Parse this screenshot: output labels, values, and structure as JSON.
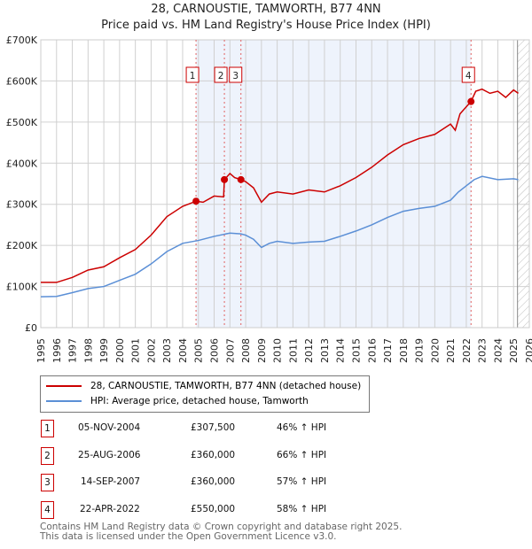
{
  "title": "28, CARNOUSTIE, TAMWORTH, B77 4NN",
  "subtitle": "Price paid vs. HM Land Registry's House Price Index (HPI)",
  "chart_data": {
    "type": "line",
    "xlim": [
      1995,
      2026
    ],
    "ylim": [
      0,
      700000
    ],
    "yticks": [
      0,
      100000,
      200000,
      300000,
      400000,
      500000,
      600000,
      700000
    ],
    "ytick_labels": [
      "£0",
      "£100K",
      "£200K",
      "£300K",
      "£400K",
      "£500K",
      "£600K",
      "£700K"
    ],
    "xticks": [
      "1995",
      "1996",
      "1997",
      "1998",
      "1999",
      "2000",
      "2001",
      "2002",
      "2003",
      "2004",
      "2005",
      "2006",
      "2007",
      "2008",
      "2009",
      "2010",
      "2011",
      "2012",
      "2013",
      "2014",
      "2015",
      "2016",
      "2017",
      "2018",
      "2019",
      "2020",
      "2021",
      "2022",
      "2023",
      "2024",
      "2025",
      "2026"
    ],
    "colors": {
      "property": "#cc0000",
      "hpi": "#5b8fd6",
      "shade": "#eef3fc"
    },
    "series": [
      {
        "name": "28, CARNOUSTIE, TAMWORTH, B77 4NN (detached house)",
        "x": [
          1995,
          1996,
          1997,
          1998,
          1999,
          2000,
          2001,
          2002,
          2003,
          2004,
          2004.85,
          2005.3,
          2006,
          2006.6,
          2006.65,
          2007,
          2007.3,
          2007.7,
          2008,
          2008.5,
          2009,
          2009.5,
          2010,
          2011,
          2012,
          2013,
          2014,
          2015,
          2016,
          2017,
          2018,
          2019,
          2020,
          2021,
          2021.3,
          2021.6,
          2022.3,
          2022.6,
          2023,
          2023.5,
          2024,
          2024.5,
          2025,
          2025.3
        ],
        "y": [
          110000,
          110000,
          122000,
          140000,
          148000,
          170000,
          190000,
          225000,
          270000,
          295000,
          307500,
          305000,
          320000,
          318000,
          360000,
          375000,
          365000,
          360000,
          355000,
          340000,
          305000,
          325000,
          330000,
          325000,
          335000,
          330000,
          345000,
          365000,
          390000,
          420000,
          445000,
          460000,
          470000,
          495000,
          480000,
          520000,
          550000,
          575000,
          580000,
          570000,
          575000,
          560000,
          578000,
          570000
        ]
      },
      {
        "name": "HPI: Average price, detached house, Tamworth",
        "x": [
          1995,
          1996,
          1997,
          1998,
          1999,
          2000,
          2001,
          2002,
          2003,
          2004,
          2005,
          2006,
          2007,
          2007.7,
          2008,
          2008.5,
          2009,
          2009.5,
          2010,
          2011,
          2012,
          2013,
          2014,
          2015,
          2016,
          2017,
          2018,
          2019,
          2020,
          2021,
          2021.5,
          2022,
          2022.5,
          2023,
          2024,
          2025,
          2025.3
        ],
        "y": [
          75000,
          76000,
          85000,
          95000,
          100000,
          115000,
          130000,
          155000,
          185000,
          205000,
          212000,
          222000,
          230000,
          228000,
          225000,
          215000,
          195000,
          205000,
          210000,
          205000,
          208000,
          210000,
          222000,
          235000,
          250000,
          268000,
          283000,
          290000,
          295000,
          310000,
          330000,
          345000,
          360000,
          368000,
          360000,
          362000,
          360000
        ]
      }
    ],
    "sales": [
      {
        "n": "1",
        "date": "05-NOV-2004",
        "x": 2004.85,
        "price": "£307,500",
        "value": 307500,
        "hpi": "46% ↑ HPI"
      },
      {
        "n": "2",
        "date": "25-AUG-2006",
        "x": 2006.65,
        "price": "£360,000",
        "value": 360000,
        "hpi": "66% ↑ HPI"
      },
      {
        "n": "3",
        "date": "14-SEP-2007",
        "x": 2007.7,
        "price": "£360,000",
        "value": 360000,
        "hpi": "57% ↑ HPI"
      },
      {
        "n": "4",
        "date": "22-APR-2022",
        "x": 2022.3,
        "price": "£550,000",
        "value": 550000,
        "hpi": "58% ↑ HPI"
      }
    ],
    "shaded": [
      2004.85,
      2022.3
    ],
    "forecast_from": 2025.25
  },
  "legend": {
    "property": "28, CARNOUSTIE, TAMWORTH, B77 4NN (detached house)",
    "hpi": "HPI: Average price, detached house, Tamworth"
  },
  "footer": {
    "line1": "Contains HM Land Registry data © Crown copyright and database right 2025.",
    "line2": "This data is licensed under the Open Government Licence v3.0."
  }
}
